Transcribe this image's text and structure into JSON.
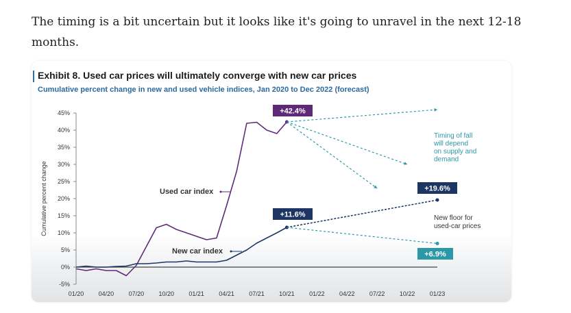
{
  "intro_text": "The timing is a bit uncertain but it looks like it's going to unravel in the next 12-18 months.",
  "colors": {
    "used": "#5e2a78",
    "new": "#1c3563",
    "teal": "#2c97a6",
    "callout_blue": "#1c3563",
    "callout_purple": "#5e2a78",
    "callout_teal": "#2c97a6"
  },
  "chart_data": {
    "type": "line",
    "title": "Exhibit 8. Used car prices will ultimately converge with new car prices",
    "subtitle": "Cumulative percent change in new and used vehicle indices, Jan 2020 to Dec 2022 (forecast)",
    "ylabel": "Cumulative percent change",
    "ylim": [
      -5,
      45
    ],
    "yticks": [
      "45%",
      "40%",
      "35%",
      "30%",
      "25%",
      "20%",
      "15%",
      "10%",
      "5%",
      "0%",
      "-5%"
    ],
    "ytick_values": [
      45,
      40,
      35,
      30,
      25,
      20,
      15,
      10,
      5,
      0,
      -5
    ],
    "xticks": [
      "01/20",
      "04/20",
      "07/20",
      "10/20",
      "01/21",
      "04/21",
      "07/21",
      "10/21",
      "01/22",
      "04/22",
      "07/22",
      "10/22",
      "01/23"
    ],
    "xtick_months": [
      0,
      3,
      6,
      9,
      12,
      15,
      18,
      21,
      24,
      27,
      30,
      33,
      36
    ],
    "series": [
      {
        "name": "Used car index",
        "x": [
          0,
          1,
          2,
          3,
          4,
          5,
          6,
          7,
          8,
          9,
          10,
          11,
          12,
          13,
          14,
          15,
          16,
          17,
          18,
          19,
          20,
          21
        ],
        "values": [
          -0.5,
          -1,
          -0.5,
          -1,
          -1,
          -2.5,
          0.5,
          6,
          11.5,
          12.5,
          11,
          10,
          9,
          8,
          8.5,
          18,
          28,
          42,
          42.3,
          40,
          39,
          42.4
        ]
      },
      {
        "name": "New car index",
        "x": [
          0,
          1,
          2,
          3,
          4,
          5,
          6,
          7,
          8,
          9,
          10,
          11,
          12,
          13,
          14,
          15,
          16,
          17,
          18,
          19,
          20,
          21
        ],
        "values": [
          0,
          0.3,
          0,
          0,
          0.2,
          0.3,
          1,
          1,
          1.2,
          1.5,
          1.5,
          1.8,
          1.5,
          1.5,
          1.5,
          2,
          3.5,
          5,
          7,
          8.5,
          10,
          11.6
        ]
      }
    ],
    "projections": [
      {
        "kind": "teal",
        "from": [
          21,
          42.4
        ],
        "to": [
          36,
          46
        ]
      },
      {
        "kind": "teal",
        "from": [
          21,
          42.4
        ],
        "to": [
          33,
          30
        ]
      },
      {
        "kind": "teal",
        "from": [
          21,
          42.4
        ],
        "to": [
          30,
          23
        ]
      },
      {
        "kind": "navy",
        "from": [
          21,
          11.6
        ],
        "to": [
          36,
          19.6
        ]
      },
      {
        "kind": "teal",
        "from": [
          21,
          11.6
        ],
        "to": [
          36,
          6.9
        ]
      }
    ],
    "callouts": [
      {
        "text": "+42.4%",
        "style": "purple",
        "at": [
          21,
          42.4
        ]
      },
      {
        "text": "+11.6%",
        "style": "blue",
        "at": [
          21,
          11.6
        ]
      },
      {
        "text": "+19.6%",
        "style": "blue",
        "at": [
          36,
          19.6
        ]
      },
      {
        "text": "+6.9%",
        "style": "teal",
        "at": [
          36,
          6.9
        ]
      }
    ],
    "annotations": {
      "used_label": "Used car index",
      "new_label": "New car index",
      "timing_lines": [
        "Timing of fall",
        "will depend",
        "on supply and",
        "demand"
      ],
      "floor_lines": [
        "New floor for",
        "used-car prices"
      ]
    }
  }
}
